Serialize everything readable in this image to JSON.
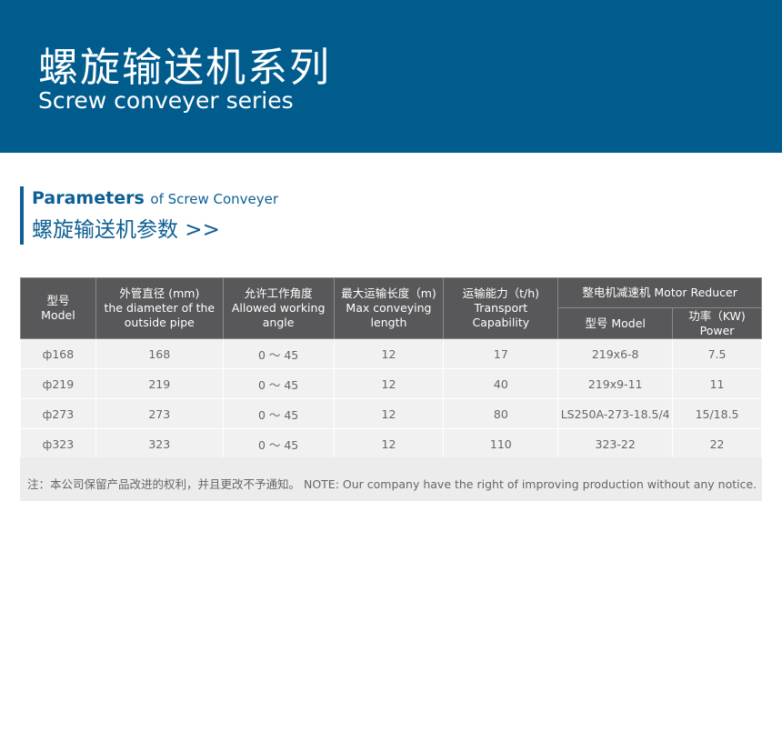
{
  "banner": {
    "title_cn": "螺旋输送机系列",
    "title_en": "Screw conveyer series"
  },
  "section": {
    "bold": "Parameters",
    "rest": "of Screw Conveyer",
    "cn": "螺旋输送机参数 >>"
  },
  "table": {
    "headers": {
      "model": [
        "型号",
        "Model"
      ],
      "diameter": [
        "外管直径 (mm)",
        "the diameter of the",
        "outside pipe"
      ],
      "angle": [
        "允许工作角度",
        "Allowed working",
        "angle"
      ],
      "length": [
        "最大运输长度（m)",
        "Max conveying",
        "length"
      ],
      "capacity": [
        "运输能力（t/h)",
        "Transport Capability"
      ],
      "reducer": "整电机减速机 Motor Reducer",
      "reducer_model": "型号 Model",
      "power": [
        "功率（KW)",
        "Power"
      ]
    },
    "rows": [
      [
        "ф168",
        "168",
        "0 ～ 45",
        "12",
        "17",
        "219x6-8",
        "7.5"
      ],
      [
        "ф219",
        "219",
        "0 ～ 45",
        "12",
        "40",
        "219x9-11",
        "11"
      ],
      [
        "ф273",
        "273",
        "0 ～ 45",
        "12",
        "80",
        "LS250A-273-18.5/4",
        "15/18.5"
      ],
      [
        "ф323",
        "323",
        "0 ～ 45",
        "12",
        "110",
        "323-22",
        "22"
      ]
    ]
  },
  "note": "注：本公司保留产品改进的权利，并且更改不予通知。 NOTE: Our company have the right of improving production without any notice."
}
